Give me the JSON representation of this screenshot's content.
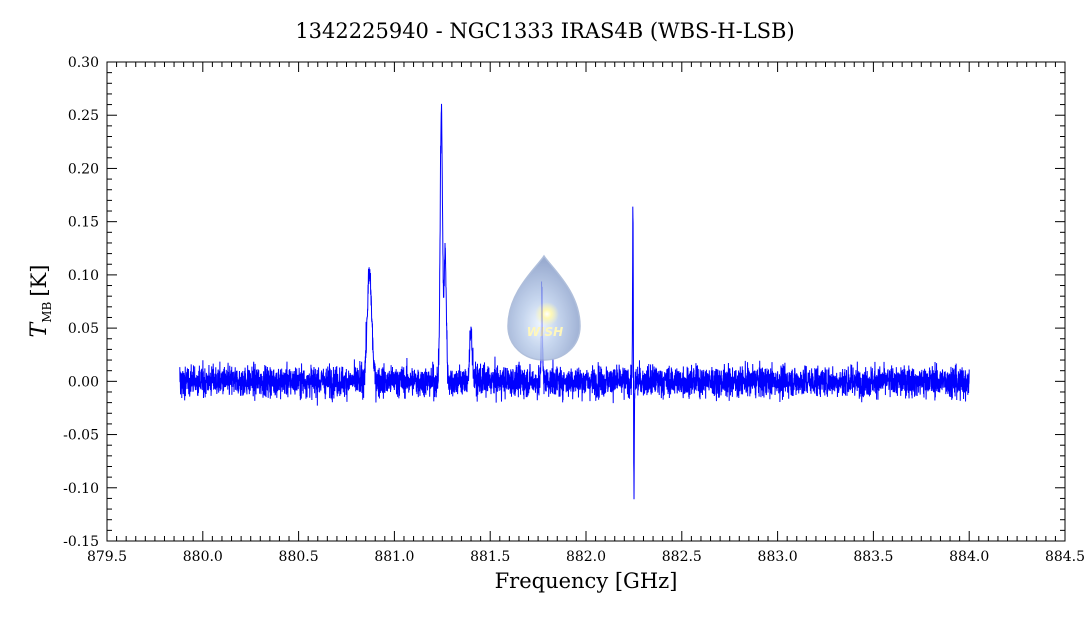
{
  "chart_data": {
    "type": "line",
    "title": "1342225940 - NGC1333 IRAS4B (WBS-H-LSB)",
    "xlabel": "Frequency [GHz]",
    "ylabel": "T",
    "ylabel_subscript": "MB",
    "ylabel_unit": "[K]",
    "xlim": [
      879.5,
      884.5
    ],
    "ylim": [
      -0.15,
      0.3
    ],
    "x_ticks": [
      "879.5",
      "880.0",
      "880.5",
      "881.0",
      "881.5",
      "882.0",
      "882.5",
      "883.0",
      "883.5",
      "884.0",
      "884.5"
    ],
    "y_ticks": [
      "-0.15",
      "-0.10",
      "-0.05",
      "0.00",
      "0.05",
      "0.10",
      "0.15",
      "0.20",
      "0.25",
      "0.30"
    ],
    "data_range": [
      879.88,
      884.0
    ],
    "noise_rms": 0.008,
    "line_color": "#0000ff",
    "grid": false,
    "lines": [
      {
        "center": 880.87,
        "peak": 0.1,
        "width": 0.012
      },
      {
        "center": 881.245,
        "peak": 0.255,
        "width": 0.006
      },
      {
        "center": 881.265,
        "peak": 0.12,
        "width": 0.006
      },
      {
        "center": 881.4,
        "peak": 0.045,
        "width": 0.007
      },
      {
        "center": 881.77,
        "peak": 0.095,
        "width": 0.003
      },
      {
        "center": 882.245,
        "peak": 0.165,
        "width": 0.002
      },
      {
        "center": 882.25,
        "peak": -0.11,
        "width": 0.002
      }
    ],
    "logo_text": "WISH"
  }
}
